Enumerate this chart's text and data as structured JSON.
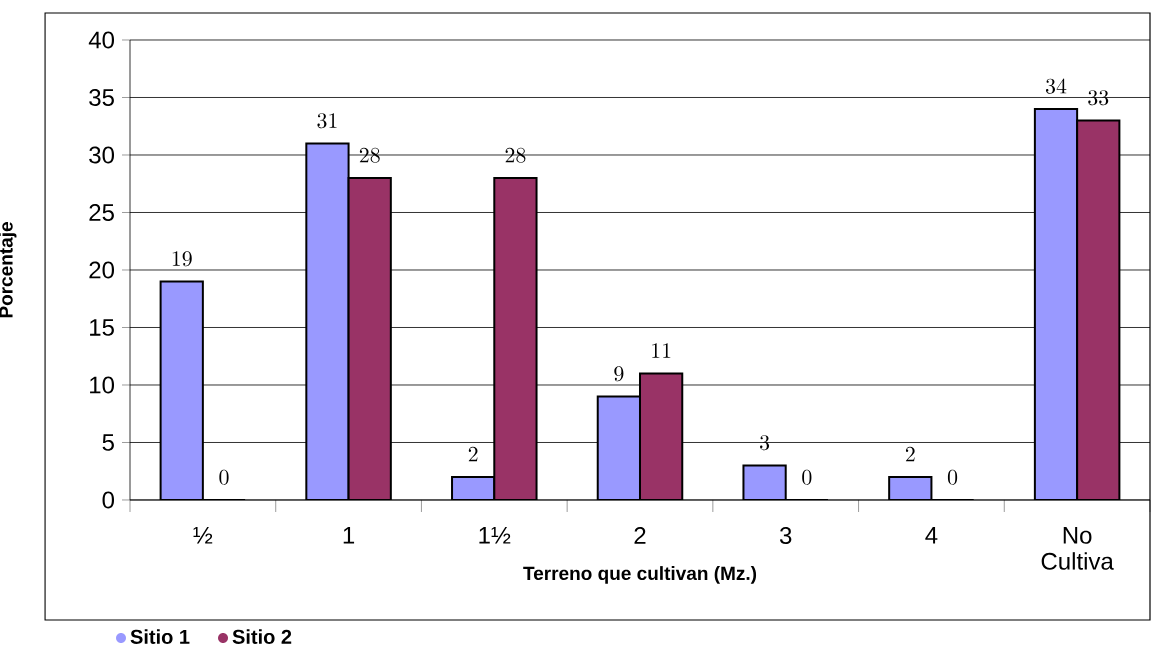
{
  "chart_data": {
    "type": "bar",
    "xlabel": "Terreno que cultivan (Mz.)",
    "ylabel": "Porcentaje",
    "categories": [
      "½",
      "1",
      "1½",
      "2",
      "3",
      "4",
      "No Cultiva"
    ],
    "series": [
      {
        "name": "Sitio 1",
        "color": "#9999ff",
        "values": [
          19,
          31,
          2,
          9,
          3,
          2,
          34
        ]
      },
      {
        "name": "Sitio 2",
        "color": "#993366",
        "values": [
          0,
          28,
          28,
          11,
          0,
          0,
          33
        ]
      }
    ],
    "ylim": [
      0,
      40
    ],
    "yticks": [
      0,
      5,
      10,
      15,
      20,
      25,
      30,
      35,
      40
    ],
    "grid": "y",
    "legend": "bottom",
    "data_labels": true
  }
}
